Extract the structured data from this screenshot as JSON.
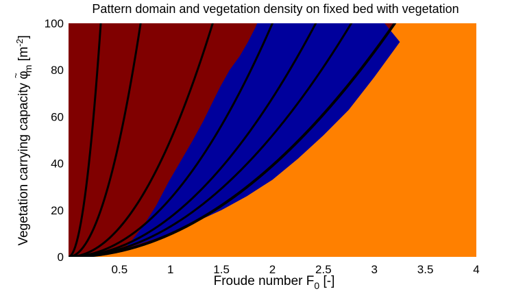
{
  "chart_data": {
    "type": "area",
    "title": "Pattern domain and vegetation density on fixed bed with vegetation",
    "xlabel": {
      "prefix": "Froude number  F",
      "subscript": "0",
      "suffix": " [-]"
    },
    "ylabel": {
      "prefix": "Vegetation carrying capacity   ",
      "symbol": "φ",
      "tilde": "~",
      "subscript": "m",
      "unit": " [m",
      "unit_sup": "-2",
      "unit_close": "]"
    },
    "xlim": [
      0,
      4
    ],
    "ylim": [
      0,
      100
    ],
    "x_ticks": [
      "0.5",
      "1",
      "1.5",
      "2",
      "2.5",
      "3",
      "3.5",
      "4"
    ],
    "x_tick_values": [
      0.5,
      1,
      1.5,
      2,
      2.5,
      3,
      3.5,
      4
    ],
    "y_ticks": [
      "0",
      "20",
      "40",
      "60",
      "80",
      "100"
    ],
    "y_tick_values": [
      0,
      20,
      40,
      60,
      80,
      100
    ],
    "grid": false,
    "colors": {
      "orange_region": "#ff8000",
      "darkred_region": "#800000",
      "blue_region": "#00009c",
      "curve": "#000000"
    },
    "regions": [
      {
        "color": "orange_region",
        "description_values": "below boundary curve y = 9.77 x^2"
      },
      {
        "color": "darkred_region"
      },
      {
        "color": "blue_region"
      }
    ],
    "boundary_curve": {
      "k": 9.77
    },
    "blue_lower": [
      [
        0.55,
        3.5
      ],
      [
        0.8,
        7
      ],
      [
        1.0,
        10
      ],
      [
        1.25,
        15
      ],
      [
        1.5,
        20
      ],
      [
        1.75,
        26
      ],
      [
        2.0,
        33
      ],
      [
        2.25,
        42
      ],
      [
        2.5,
        52
      ],
      [
        2.75,
        63
      ],
      [
        3.0,
        77
      ],
      [
        3.2,
        89
      ],
      [
        3.25,
        92
      ],
      [
        3.1,
        100
      ]
    ],
    "blue_upper": [
      [
        1.85,
        100
      ],
      [
        1.83,
        98
      ],
      [
        1.76,
        92
      ],
      [
        1.68,
        86
      ],
      [
        1.58,
        80
      ],
      [
        1.49,
        73
      ],
      [
        1.41,
        66
      ],
      [
        1.32,
        58
      ],
      [
        1.22,
        50
      ],
      [
        1.1,
        41
      ],
      [
        0.98,
        32
      ],
      [
        0.86,
        22
      ],
      [
        0.73,
        13
      ],
      [
        0.62,
        7
      ],
      [
        0.55,
        3.5
      ]
    ],
    "curves_k": [
      9.77,
      14,
      22,
      35,
      50,
      200,
      110,
      1000
    ],
    "series_curves": [
      {
        "k": 1000
      },
      {
        "k": 200
      },
      {
        "k": 50
      },
      {
        "k": 25
      },
      {
        "k": 17
      },
      {
        "k": 13
      },
      {
        "k": 9.77
      }
    ]
  }
}
